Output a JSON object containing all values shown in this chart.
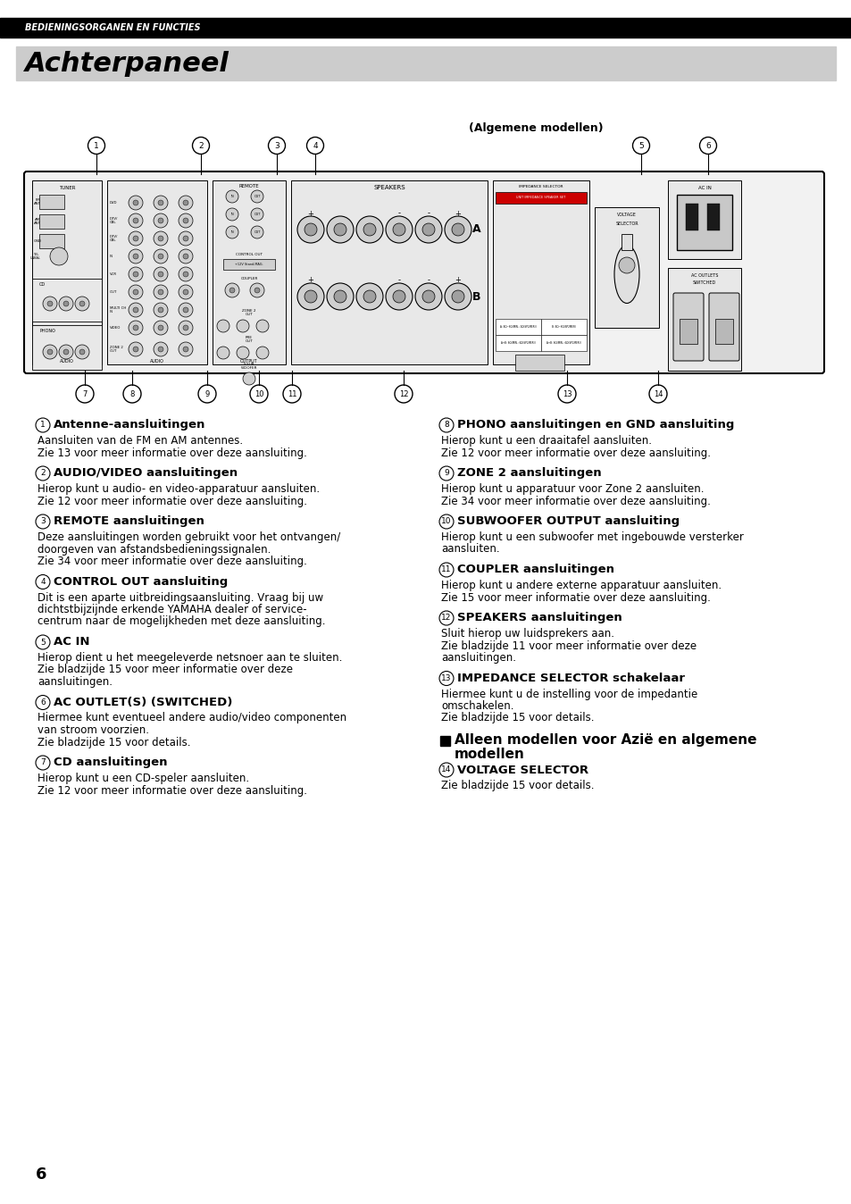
{
  "page_bg": "#ffffff",
  "header_bar_color": "#000000",
  "header_text": "BEDIENINGSORGANEN EN FUNCTIES",
  "header_text_color": "#ffffff",
  "title_bg": "#cccccc",
  "title_text": "Achterpaneel",
  "title_text_color": "#000000",
  "algemene_label": "(Algemene modellen)",
  "page_number": "6",
  "left_sections": [
    {
      "number": "1",
      "heading": "Antenne-aansluitingen",
      "lines": [
        "Aansluiten van de FM en AM antennes.",
        "Zie 13 voor meer informatie over deze aansluiting."
      ]
    },
    {
      "number": "2",
      "heading": "AUDIO/VIDEO aansluitingen",
      "lines": [
        "Hierop kunt u audio- en video-apparatuur aansluiten.",
        "Zie 12 voor meer informatie over deze aansluiting."
      ]
    },
    {
      "number": "3",
      "heading": "REMOTE aansluitingen",
      "lines": [
        "Deze aansluitingen worden gebruikt voor het ontvangen/",
        "doorgeven van afstandsbedieningssignalen.",
        "Zie 34 voor meer informatie over deze aansluiting."
      ]
    },
    {
      "number": "4",
      "heading": "CONTROL OUT aansluiting",
      "lines": [
        "Dit is een aparte uitbreidingsaansluiting. Vraag bij uw",
        "dichtstbijzijnde erkende YAMAHA dealer of service-",
        "centrum naar de mogelijkheden met deze aansluiting."
      ]
    },
    {
      "number": "5",
      "heading": "AC IN",
      "lines": [
        "Hierop dient u het meegeleverde netsnoer aan te sluiten.",
        "Zie bladzijde 15 voor meer informatie over deze",
        "aansluitingen."
      ]
    },
    {
      "number": "6",
      "heading": "AC OUTLET(S) (SWITCHED)",
      "lines": [
        "Hiermee kunt eventueel andere audio/video componenten",
        "van stroom voorzien.",
        "Zie bladzijde 15 voor details."
      ]
    },
    {
      "number": "7",
      "heading": "CD aansluitingen",
      "lines": [
        "Hierop kunt u een CD-speler aansluiten.",
        "Zie 12 voor meer informatie over deze aansluiting."
      ]
    }
  ],
  "right_sections": [
    {
      "number": "8",
      "heading": "PHONO aansluitingen en GND aansluiting",
      "lines": [
        "Hierop kunt u een draaitafel aansluiten.",
        "Zie 12 voor meer informatie over deze aansluiting."
      ]
    },
    {
      "number": "9",
      "heading": "ZONE 2 aansluitingen",
      "lines": [
        "Hierop kunt u apparatuur voor Zone 2 aansluiten.",
        "Zie 34 voor meer informatie over deze aansluiting."
      ]
    },
    {
      "number": "10",
      "heading": "SUBWOOFER OUTPUT aansluiting",
      "lines": [
        "Hierop kunt u een subwoofer met ingebouwde versterker",
        "aansluiten."
      ]
    },
    {
      "number": "11",
      "heading": "COUPLER aansluitingen",
      "lines": [
        "Hierop kunt u andere externe apparatuur aansluiten.",
        "Zie 15 voor meer informatie over deze aansluiting."
      ]
    },
    {
      "number": "12",
      "heading": "SPEAKERS aansluitingen",
      "lines": [
        "Sluit hierop uw luidsprekers aan.",
        "Zie bladzijde 11 voor meer informatie over deze",
        "aansluitingen."
      ]
    },
    {
      "number": "13",
      "heading": "IMPEDANCE SELECTOR schakelaar",
      "lines": [
        "Hiermee kunt u de instelling voor de impedantie",
        "omschakelen.",
        "Zie bladzijde 15 voor details."
      ]
    }
  ],
  "special_section_heading_line1": "Alleen modellen voor Azië en algemene",
  "special_section_heading_line2": "modellen",
  "special_section_14_heading": "VOLTAGE SELECTOR",
  "special_section_14_lines": [
    "Zie bladzijde 15 voor details."
  ],
  "circled_numbers_top": [
    "1",
    "2",
    "3",
    "4",
    "5",
    "6"
  ],
  "circled_numbers_bottom": [
    "7",
    "8",
    "9",
    "10",
    "11",
    "12",
    "13",
    "14"
  ],
  "top_x": [
    108,
    225,
    310,
    353,
    718,
    793
  ],
  "bottom_x": [
    95,
    148,
    232,
    290,
    327,
    452,
    635,
    737
  ]
}
